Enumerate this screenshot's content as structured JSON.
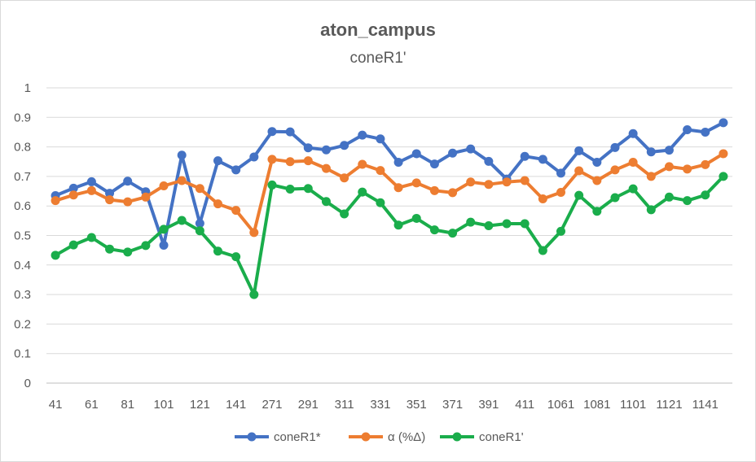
{
  "chart_data": {
    "type": "line",
    "title": "aton_campus",
    "subtitle": "coneR1'",
    "xlabel": "",
    "ylabel": "",
    "ylim": [
      0,
      1
    ],
    "yticks": [
      "0",
      "0.1",
      "0.2",
      "0.3",
      "0.4",
      "0.5",
      "0.6",
      "0.7",
      "0.8",
      "0.9",
      "1"
    ],
    "grid": true,
    "legend_position": "bottom",
    "categories": [
      "41",
      "51",
      "61",
      "71",
      "81",
      "91",
      "101",
      "111",
      "121",
      "131",
      "141",
      "151",
      "271",
      "281",
      "291",
      "301",
      "311",
      "321",
      "331",
      "341",
      "351",
      "361",
      "371",
      "381",
      "391",
      "401",
      "411",
      "421",
      "1061",
      "1071",
      "1081",
      "1091",
      "1101",
      "1111",
      "1121",
      "1131",
      "1141",
      "1151"
    ],
    "x_tick_labels": [
      "41",
      "61",
      "81",
      "101",
      "121",
      "141",
      "271",
      "291",
      "311",
      "331",
      "351",
      "371",
      "391",
      "411",
      "1061",
      "1081",
      "1101",
      "1121",
      "1141"
    ],
    "series": [
      {
        "name": "coneR1*",
        "color": "#4472c4",
        "values": [
          0.635,
          0.66,
          0.682,
          0.643,
          0.684,
          0.648,
          0.467,
          0.772,
          0.541,
          0.753,
          0.722,
          0.766,
          0.852,
          0.851,
          0.797,
          0.79,
          0.805,
          0.84,
          0.827,
          0.748,
          0.777,
          0.742,
          0.779,
          0.793,
          0.751,
          0.691,
          0.768,
          0.758,
          0.711,
          0.787,
          0.748,
          0.798,
          0.845,
          0.783,
          0.789,
          0.858,
          0.85,
          0.882
        ]
      },
      {
        "name": "α (%Δ)",
        "color": "#ed7d31",
        "values": [
          0.618,
          0.637,
          0.652,
          0.621,
          0.614,
          0.63,
          0.668,
          0.686,
          0.659,
          0.607,
          0.585,
          0.51,
          0.758,
          0.75,
          0.753,
          0.727,
          0.695,
          0.741,
          0.72,
          0.662,
          0.678,
          0.652,
          0.645,
          0.681,
          0.673,
          0.681,
          0.686,
          0.624,
          0.646,
          0.719,
          0.686,
          0.722,
          0.748,
          0.7,
          0.733,
          0.725,
          0.74,
          0.777
        ]
      },
      {
        "name": "coneR1'",
        "color": "#1aad4b",
        "values": [
          0.433,
          0.468,
          0.493,
          0.454,
          0.444,
          0.466,
          0.521,
          0.551,
          0.516,
          0.447,
          0.428,
          0.3,
          0.671,
          0.657,
          0.659,
          0.615,
          0.573,
          0.647,
          0.611,
          0.535,
          0.558,
          0.519,
          0.508,
          0.545,
          0.533,
          0.54,
          0.54,
          0.449,
          0.514,
          0.636,
          0.582,
          0.628,
          0.658,
          0.587,
          0.63,
          0.618,
          0.637,
          0.7
        ]
      }
    ]
  }
}
